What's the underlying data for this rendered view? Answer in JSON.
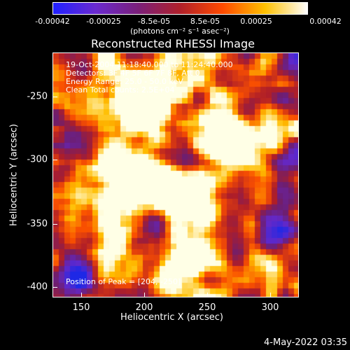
{
  "colorbar": {
    "ticks": [
      "-0.00042",
      "-0.00025",
      "-8.5e-05",
      "8.5e-05",
      "0.00025",
      "0.00042"
    ],
    "units": "(photons cm⁻² s⁻¹ asec⁻²)",
    "colors": [
      "#2020ff",
      "#6a2ad0",
      "#7a1f7a",
      "#b0202a",
      "#ff4a00",
      "#ffc000",
      "#ffffff"
    ]
  },
  "title": "Reconstructed RHESSI Image",
  "info": {
    "line1": "19-Oct-2004 11:18:40.000 to 11:24:40.000",
    "line2": "Detectors: 3F 4F 5F 6F 7F 8F, Att 0",
    "line3": "Energy Range: 25.0 - 50.0 keV",
    "line4": "Clean     Total counts: 2.5E+04",
    "peak": "Position of Peak = [204, -250]"
  },
  "axes": {
    "xlabel": "Heliocentric X (arcsec)",
    "ylabel": "Heliocentric Y (arcsec)",
    "xticks": [
      "150",
      "200",
      "250",
      "300"
    ],
    "yticks": [
      "-250",
      "-300",
      "-350",
      "-400"
    ]
  },
  "timestamp": "4-May-2022 03:35"
}
